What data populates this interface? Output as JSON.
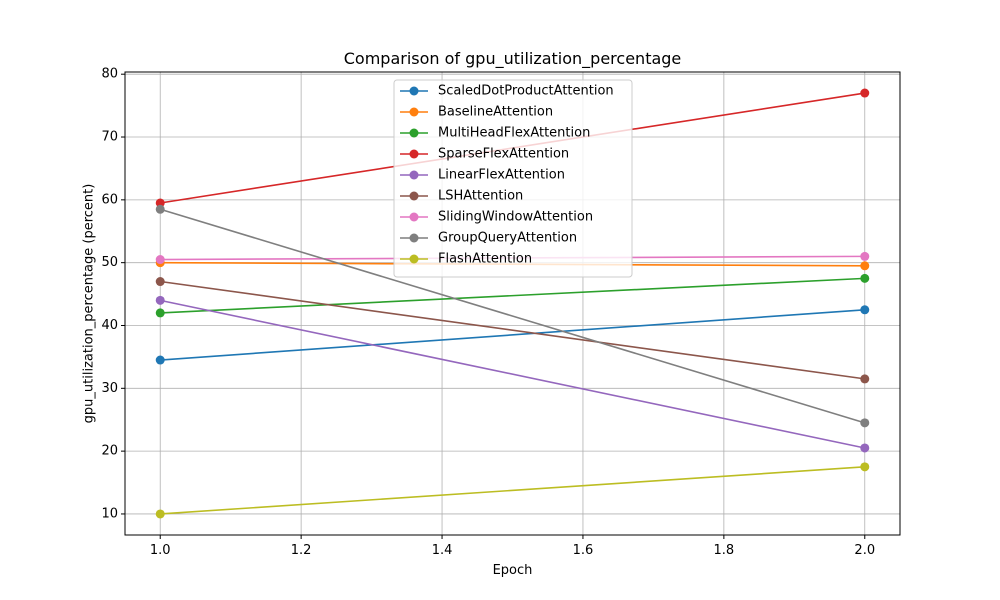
{
  "chart_data": {
    "type": "line",
    "title": "Comparison of gpu_utilization_percentage",
    "xlabel": "Epoch",
    "ylabel": "gpu_utilization_percentage (percent)",
    "x": [
      1.0,
      2.0
    ],
    "xlim": [
      0.95,
      2.05
    ],
    "ylim": [
      6.65,
      80.35
    ],
    "xticks": [
      1.0,
      1.2,
      1.4,
      1.6,
      1.8,
      2.0
    ],
    "xtick_labels": [
      "1.0",
      "1.2",
      "1.4",
      "1.6",
      "1.8",
      "2.0"
    ],
    "yticks": [
      10,
      20,
      30,
      40,
      50,
      60,
      70,
      80
    ],
    "ytick_labels": [
      "10",
      "20",
      "30",
      "40",
      "50",
      "60",
      "70",
      "80"
    ],
    "grid": true,
    "legend_position": "top-center",
    "series": [
      {
        "name": "ScaledDotProductAttention",
        "values": [
          34.5,
          42.5
        ],
        "color": "#1f77b4"
      },
      {
        "name": "BaselineAttention",
        "values": [
          50.0,
          49.5
        ],
        "color": "#ff7f0e"
      },
      {
        "name": "MultiHeadFlexAttention",
        "values": [
          42.0,
          47.5
        ],
        "color": "#2ca02c"
      },
      {
        "name": "SparseFlexAttention",
        "values": [
          59.5,
          77.0
        ],
        "color": "#d62728"
      },
      {
        "name": "LinearFlexAttention",
        "values": [
          44.0,
          20.5
        ],
        "color": "#9467bd"
      },
      {
        "name": "LSHAttention",
        "values": [
          47.0,
          31.5
        ],
        "color": "#8c564b"
      },
      {
        "name": "SlidingWindowAttention",
        "values": [
          50.5,
          51.0
        ],
        "color": "#e377c2"
      },
      {
        "name": "GroupQueryAttention",
        "values": [
          58.5,
          24.5
        ],
        "color": "#7f7f7f"
      },
      {
        "name": "FlashAttention",
        "values": [
          10.0,
          17.5
        ],
        "color": "#bcbd22"
      }
    ]
  }
}
